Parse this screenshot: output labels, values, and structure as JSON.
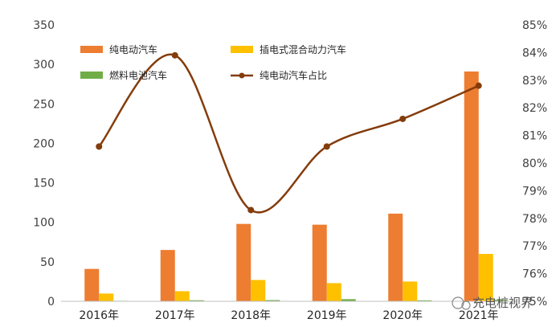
{
  "chart_data": {
    "type": "bar",
    "categories": [
      "2016年",
      "2017年",
      "2018年",
      "2019年",
      "2020年",
      "2021年"
    ],
    "series": [
      {
        "name": "纯电动汽车",
        "kind": "bar",
        "axis": "left",
        "color": "#ED7D31",
        "values": [
          41,
          65,
          98,
          97,
          111,
          291
        ]
      },
      {
        "name": "插电式混合动力汽车",
        "kind": "bar",
        "axis": "left",
        "color": "#FFC000",
        "values": [
          9.8,
          12.8,
          27,
          23,
          25,
          60
        ]
      },
      {
        "name": "燃料电池汽车",
        "kind": "bar",
        "axis": "left",
        "color": "#70AD47",
        "values": [
          0.6,
          1.3,
          1.5,
          2.7,
          1.2,
          1.8
        ]
      },
      {
        "name": "纯电动汽车占比",
        "kind": "line",
        "axis": "right",
        "color": "#843C0C",
        "values": [
          80.6,
          83.9,
          78.3,
          80.6,
          81.6,
          82.8
        ]
      }
    ],
    "y_left": {
      "ylim": [
        0,
        350
      ],
      "ticks": [
        "0",
        "50",
        "100",
        "150",
        "200",
        "250",
        "300",
        "350"
      ]
    },
    "y_right": {
      "ylim": [
        75,
        85
      ],
      "ticks": [
        "75%",
        "76%",
        "77%",
        "78%",
        "79%",
        "80%",
        "81%",
        "82%",
        "83%",
        "84%",
        "85%"
      ]
    },
    "grid": false,
    "legend": "top-left"
  },
  "watermark": "充电桩视界"
}
